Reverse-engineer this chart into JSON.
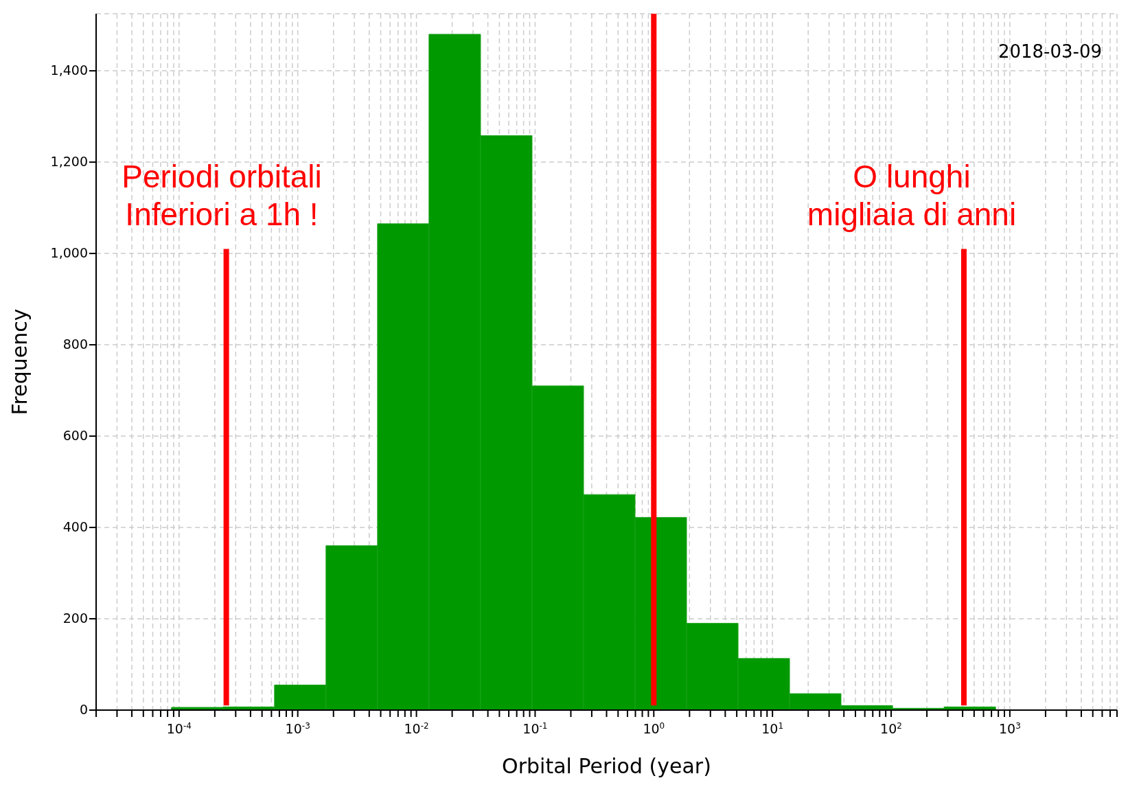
{
  "chart_data": {
    "type": "histogram",
    "xlabel": "Orbital Period (year)",
    "ylabel": "Frequency",
    "log": "x",
    "grid": true,
    "color": "#009900",
    "bins": [
      8.63e-05,
      0.000234,
      0.000637,
      0.00173,
      0.0047,
      0.01276,
      0.0347,
      0.0942,
      0.256,
      0.695,
      1.888,
      5.13,
      13.93,
      37.8,
      102.8,
      279,
      759
    ],
    "values": [
      6,
      7,
      55,
      360,
      1065,
      1480,
      1258,
      710,
      472,
      422,
      190,
      113,
      36,
      10,
      4,
      7
    ],
    "series": [
      {
        "type": "line",
        "color": "#ff0000",
        "x": [
          0.00025,
          0.00025
        ],
        "values": [
          10,
          1010
        ]
      },
      {
        "type": "line",
        "color": "#ff0000",
        "x": [
          1,
          1
        ],
        "values": [
          10,
          1525
        ]
      },
      {
        "type": "line",
        "color": "#ff0000",
        "x": [
          410,
          410
        ],
        "values": [
          10,
          1010
        ]
      }
    ],
    "xlim": [
      2e-05,
      8000
    ],
    "ylim": [
      0,
      1525
    ],
    "yticks": [
      0,
      200,
      400,
      600,
      800,
      {
        "value": 1000,
        "label": "1,000"
      },
      {
        "value": 1200,
        "label": "1,200"
      },
      {
        "value": 1400,
        "label": "1,400"
      }
    ],
    "xticks": [
      {
        "value": 2e-05,
        "label": null
      },
      {
        "value": 3e-05,
        "label": null
      },
      {
        "value": 4e-05,
        "label": null
      },
      {
        "value": 5e-05,
        "label": null
      },
      {
        "value": 6e-05,
        "label": null
      },
      {
        "value": 7e-05,
        "label": null
      },
      {
        "value": 8e-05,
        "label": null
      },
      {
        "value": 9e-05,
        "label": null
      },
      {
        "value": 0.0001,
        "label": "10$^{-4}$"
      },
      {
        "value": 0.0002,
        "label": null
      },
      {
        "value": 0.0003,
        "label": null
      },
      {
        "value": 0.0004,
        "label": null
      },
      {
        "value": 0.0005,
        "label": null
      },
      {
        "value": 0.0006,
        "label": null
      },
      {
        "value": 0.0007,
        "label": null
      },
      {
        "value": 0.0008,
        "label": null
      },
      {
        "value": 0.0009,
        "label": null
      },
      {
        "value": 0.001,
        "label": "10$^{-3}$"
      },
      {
        "value": 0.002,
        "label": null
      },
      {
        "value": 0.003,
        "label": null
      },
      {
        "value": 0.004,
        "label": null
      },
      {
        "value": 0.005,
        "label": null
      },
      {
        "value": 0.006,
        "label": null
      },
      {
        "value": 0.007,
        "label": null
      },
      {
        "value": 0.008,
        "label": null
      },
      {
        "value": 0.009,
        "label": null
      },
      {
        "value": 0.01,
        "label": "10$^{-2}$"
      },
      {
        "value": 0.02,
        "label": null
      },
      {
        "value": 0.03,
        "label": null
      },
      {
        "value": 0.04,
        "label": null
      },
      {
        "value": 0.05,
        "label": null
      },
      {
        "value": 0.06,
        "label": null
      },
      {
        "value": 0.07,
        "label": null
      },
      {
        "value": 0.08,
        "label": null
      },
      {
        "value": 0.09,
        "label": null
      },
      {
        "value": 0.1,
        "label": "10$^{-1}$"
      },
      {
        "value": 0.2,
        "label": null
      },
      {
        "value": 0.3,
        "label": null
      },
      {
        "value": 0.4,
        "label": null
      },
      {
        "value": 0.5,
        "label": null
      },
      {
        "value": 0.6,
        "label": null
      },
      {
        "value": 0.7,
        "label": null
      },
      {
        "value": 0.8,
        "label": null
      },
      {
        "value": 0.9,
        "label": null
      },
      {
        "value": 1,
        "label": "10$^{0}$"
      },
      {
        "value": 2,
        "label": null
      },
      {
        "value": 3,
        "label": null
      },
      {
        "value": 4,
        "label": null
      },
      {
        "value": 5,
        "label": null
      },
      {
        "value": 6,
        "label": null
      },
      {
        "value": 7,
        "label": null
      },
      {
        "value": 8,
        "label": null
      },
      {
        "value": 9,
        "label": null
      },
      {
        "value": 10,
        "label": "10$^{1}$"
      },
      {
        "value": 20,
        "label": null
      },
      {
        "value": 30,
        "label": null
      },
      {
        "value": 40,
        "label": null
      },
      {
        "value": 50,
        "label": null
      },
      {
        "value": 60,
        "label": null
      },
      {
        "value": 70,
        "label": null
      },
      {
        "value": 80,
        "label": null
      },
      {
        "value": 90,
        "label": null
      },
      {
        "value": 100,
        "label": "10$^{2}$"
      },
      {
        "value": 200,
        "label": null
      },
      {
        "value": 300,
        "label": null
      },
      {
        "value": 400,
        "label": null
      },
      {
        "value": 500,
        "label": null
      },
      {
        "value": 600,
        "label": null
      },
      {
        "value": 700,
        "label": null
      },
      {
        "value": 800,
        "label": null
      },
      {
        "value": 900,
        "label": null
      },
      {
        "value": 1000,
        "label": "10$^{3}$"
      },
      {
        "value": 2000,
        "label": null
      },
      {
        "value": 3000,
        "label": null
      },
      {
        "value": 4000,
        "label": null
      },
      {
        "value": 5000,
        "label": null
      },
      {
        "value": 6000,
        "label": null
      },
      {
        "value": 7000,
        "label": null
      },
      {
        "value": 8000,
        "label": null
      }
    ],
    "annotations": [
      "Periodi orbitali\nInferiori a 1h !",
      "O lunghi\nmigliaia di anni",
      "2018-03-09"
    ]
  }
}
